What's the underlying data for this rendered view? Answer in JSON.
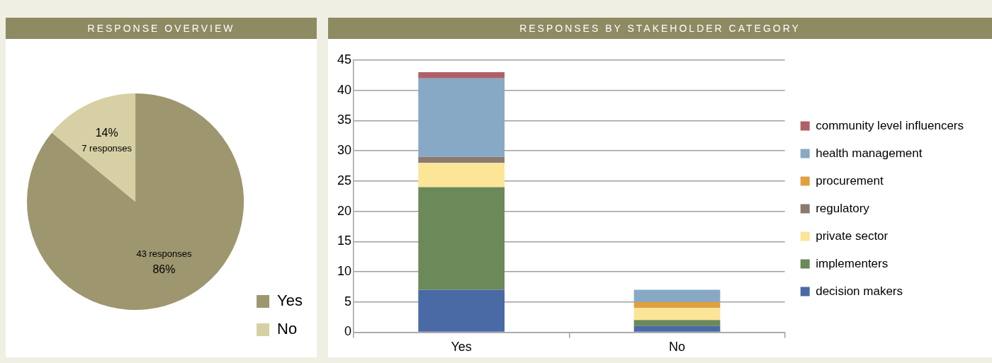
{
  "chart_data": [
    {
      "type": "pie",
      "title": "RESPONSE OVERVIEW",
      "categories": [
        "Yes",
        "No"
      ],
      "values": [
        43,
        7
      ],
      "colors": [
        "#9d966f",
        "#d6d0a4"
      ],
      "value_labels": [
        "43 responses\n86%",
        "14%\n7 responses"
      ],
      "legend": "bottom right"
    },
    {
      "type": "bar",
      "title": "RESPONSES BY STAKEHOLDER CATEGORY",
      "categories": [
        "Yes",
        "No"
      ],
      "stacked": true,
      "series": [
        {
          "name": "decision makers",
          "color": "#4a6aa5",
          "values": [
            7,
            1
          ]
        },
        {
          "name": "implementers",
          "color": "#6b8959",
          "values": [
            17,
            1
          ]
        },
        {
          "name": "private sector",
          "color": "#fce597",
          "values": [
            4,
            2
          ]
        },
        {
          "name": "regulatory",
          "color": "#8b7a6f",
          "values": [
            1,
            0
          ]
        },
        {
          "name": "procurement",
          "color": "#e0a040",
          "values": [
            0,
            1
          ]
        },
        {
          "name": "health management",
          "color": "#87a9c6",
          "values": [
            13,
            2
          ]
        },
        {
          "name": "community level influencers",
          "color": "#b06068",
          "values": [
            1,
            0
          ]
        }
      ],
      "ylim": [
        0,
        45
      ],
      "yticks": [
        0,
        5,
        10,
        15,
        20,
        25,
        30,
        35,
        40,
        45
      ],
      "grid": "y",
      "legend": "right"
    }
  ]
}
